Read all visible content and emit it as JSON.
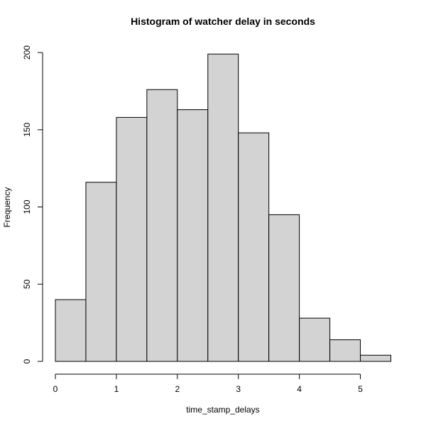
{
  "chart_data": {
    "type": "bar",
    "subtype": "histogram",
    "title": "Histogram of watcher delay in seconds",
    "xlabel": "time_stamp_delays",
    "ylabel": "Frequency",
    "bins": [
      {
        "start": 0.0,
        "end": 0.5,
        "count": 40
      },
      {
        "start": 0.5,
        "end": 1.0,
        "count": 116
      },
      {
        "start": 1.0,
        "end": 1.5,
        "count": 158
      },
      {
        "start": 1.5,
        "end": 2.0,
        "count": 176
      },
      {
        "start": 2.0,
        "end": 2.5,
        "count": 163
      },
      {
        "start": 2.5,
        "end": 3.0,
        "count": 199
      },
      {
        "start": 3.0,
        "end": 3.5,
        "count": 148
      },
      {
        "start": 3.5,
        "end": 4.0,
        "count": 95
      },
      {
        "start": 4.0,
        "end": 4.5,
        "count": 28
      },
      {
        "start": 4.5,
        "end": 5.0,
        "count": 14
      },
      {
        "start": 5.0,
        "end": 5.5,
        "count": 4
      }
    ],
    "xlim": [
      0,
      5.5
    ],
    "ylim": [
      0,
      200
    ],
    "xticks": [
      0,
      1,
      2,
      3,
      4,
      5
    ],
    "yticks": [
      0,
      50,
      100,
      150,
      200
    ],
    "bar_fill": "#d3d3d3",
    "bar_stroke": "#000000",
    "grid": false,
    "legend": "none"
  }
}
